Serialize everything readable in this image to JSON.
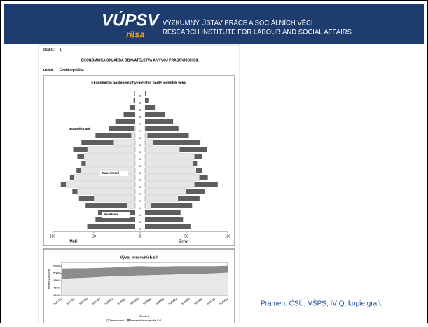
{
  "header": {
    "logo": "VÚPSV",
    "logo_sub": "rilsa",
    "line1": "VÝZKUMNÝ ÚSTAV PRÁCE A SOCIÁLNÍCH VĚCÍ",
    "line2": "RESEARCH INSTITUTE FOR LABOUR AND SOCIAL AFFAIRS"
  },
  "document": {
    "graf_label": "Graf č.:",
    "graf_number": "1",
    "title": "EKONOMICKÁ SKLADBA OBYVATELSTVA A VÝVOJ PRACOVNÍCH SIL",
    "area_label": "Území:",
    "area": "Česká republika"
  },
  "caption": "Pramen: ČSÚ, VŠPS, IV Q, kopie grafu",
  "chart_data": [
    {
      "type": "pyramid",
      "title": "Ekonomické postavení obyvatelstva podle jednotek věku",
      "categories": [
        "0",
        "5",
        "10",
        "15",
        "20",
        "25",
        "30",
        "35",
        "40",
        "45",
        "50",
        "55",
        "60",
        "65",
        "70",
        "75",
        "80",
        "85",
        "90",
        "95"
      ],
      "men_active": [
        0,
        0,
        0,
        10,
        50,
        70,
        84,
        74,
        66,
        60,
        62,
        58,
        26,
        5,
        1,
        0,
        0,
        0,
        0,
        0
      ],
      "men_inactive": [
        58,
        48,
        45,
        50,
        18,
        6,
        6,
        5,
        5,
        5,
        8,
        17,
        39,
        43,
        31,
        24,
        14,
        6,
        2,
        0.5
      ],
      "women_active": [
        0,
        0,
        0,
        7,
        40,
        50,
        60,
        66,
        62,
        58,
        60,
        42,
        10,
        3,
        0.5,
        0,
        0,
        0,
        0,
        0
      ],
      "women_inactive": [
        55,
        46,
        43,
        50,
        26,
        22,
        28,
        10,
        7,
        5,
        9,
        33,
        57,
        50,
        40,
        34,
        24,
        12,
        4,
        1
      ],
      "active_color": "#e6e6e6",
      "inactive_color": "#5e5e5e",
      "xlim": [
        -100,
        100
      ],
      "xticks": [
        {
          "value": -100,
          "label": "100"
        },
        {
          "value": -50,
          "label": "50"
        },
        0,
        50,
        100
      ],
      "left_label": "Muži",
      "right_label": "Ženy",
      "annotations": [
        "Nezaměstnaní",
        "Zaměstnaní",
        "Neaktivní"
      ]
    },
    {
      "type": "area",
      "title": "Vývoj pracovních sil",
      "ylabel": "Osoby v tisících",
      "xlabel": "Čtvrtletí",
      "categories": [
        "2007Q1",
        "2007Q2",
        "2007Q3",
        "2007Q4",
        "2008Q1",
        "2008Q2",
        "2008Q3",
        "2008Q4",
        "2009Q1",
        "2009Q2",
        "2009Q3",
        "2009Q4",
        "2010Q1",
        "2010Q2"
      ],
      "series": [
        {
          "name": "Zaměstnaní",
          "color": "#e8e8e8",
          "values": [
            4850,
            4870,
            4880,
            4900,
            4920,
            4930,
            4940,
            4950,
            4960,
            4970,
            4980,
            4990,
            5000,
            5020
          ]
        },
        {
          "name": "Nezaměstnaní podle ILO",
          "color": "#8c8c8c",
          "values": [
            280,
            270,
            260,
            250,
            240,
            250,
            260,
            240,
            230,
            230,
            220,
            210,
            200,
            190
          ]
        }
      ],
      "ylim": [
        4400,
        5300
      ],
      "yticks": [
        4400,
        4600,
        4800,
        5000,
        5200
      ]
    }
  ]
}
